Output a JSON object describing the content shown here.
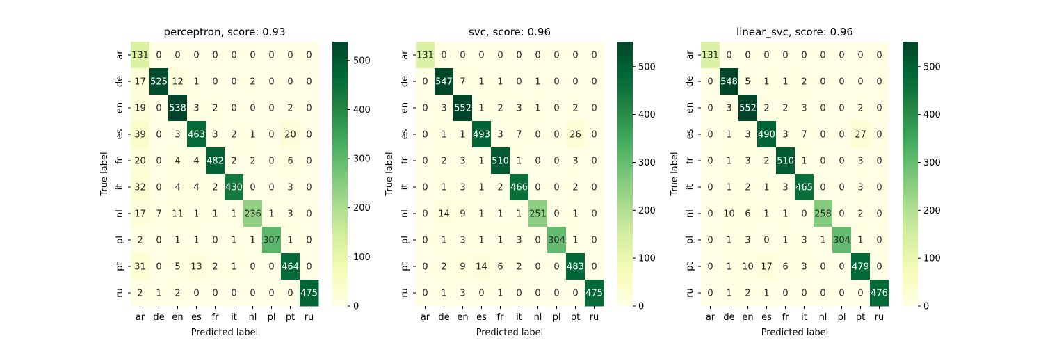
{
  "chart_data": [
    {
      "type": "heatmap",
      "title": "perceptron, score: 0.93",
      "xlabel": "Predicted label",
      "ylabel": "True label",
      "x_categories": [
        "ar",
        "de",
        "en",
        "es",
        "fr",
        "it",
        "nl",
        "pl",
        "pt",
        "ru"
      ],
      "y_categories": [
        "ar",
        "de",
        "en",
        "es",
        "fr",
        "it",
        "nl",
        "pl",
        "pt",
        "ru"
      ],
      "values": [
        [
          131,
          0,
          0,
          0,
          0,
          0,
          0,
          0,
          0,
          0
        ],
        [
          17,
          525,
          12,
          1,
          0,
          0,
          2,
          0,
          0,
          0
        ],
        [
          19,
          0,
          538,
          3,
          2,
          0,
          0,
          0,
          2,
          0
        ],
        [
          39,
          0,
          3,
          463,
          3,
          2,
          1,
          0,
          20,
          0
        ],
        [
          20,
          0,
          4,
          4,
          482,
          2,
          2,
          0,
          6,
          0
        ],
        [
          32,
          0,
          4,
          4,
          2,
          430,
          0,
          0,
          3,
          0
        ],
        [
          17,
          7,
          11,
          1,
          1,
          1,
          236,
          1,
          3,
          0
        ],
        [
          2,
          0,
          1,
          1,
          0,
          1,
          1,
          307,
          1,
          0
        ],
        [
          31,
          0,
          5,
          13,
          2,
          1,
          0,
          0,
          464,
          0
        ],
        [
          2,
          1,
          2,
          0,
          0,
          0,
          0,
          0,
          0,
          475
        ]
      ],
      "colorbar": {
        "min": 0,
        "max": 538,
        "ticks": [
          0,
          100,
          200,
          300,
          400,
          500
        ]
      }
    },
    {
      "type": "heatmap",
      "title": "svc, score: 0.96",
      "xlabel": "Predicted label",
      "ylabel": "True label",
      "x_categories": [
        "ar",
        "de",
        "en",
        "es",
        "fr",
        "it",
        "nl",
        "pl",
        "pt",
        "ru"
      ],
      "y_categories": [
        "ar",
        "de",
        "en",
        "es",
        "fr",
        "it",
        "nl",
        "pl",
        "pt",
        "ru"
      ],
      "values": [
        [
          131,
          0,
          0,
          0,
          0,
          0,
          0,
          0,
          0,
          0
        ],
        [
          0,
          547,
          7,
          1,
          1,
          0,
          1,
          0,
          0,
          0
        ],
        [
          0,
          3,
          552,
          1,
          2,
          3,
          1,
          0,
          2,
          0
        ],
        [
          0,
          1,
          1,
          493,
          3,
          7,
          0,
          0,
          26,
          0
        ],
        [
          0,
          2,
          3,
          1,
          510,
          1,
          0,
          0,
          3,
          0
        ],
        [
          0,
          1,
          3,
          1,
          2,
          466,
          0,
          0,
          2,
          0
        ],
        [
          0,
          14,
          9,
          1,
          1,
          1,
          251,
          0,
          1,
          0
        ],
        [
          0,
          1,
          3,
          1,
          1,
          3,
          0,
          304,
          1,
          0
        ],
        [
          0,
          2,
          9,
          14,
          6,
          2,
          0,
          0,
          483,
          0
        ],
        [
          0,
          1,
          3,
          0,
          1,
          0,
          0,
          0,
          0,
          475
        ]
      ],
      "colorbar": {
        "min": 0,
        "max": 552,
        "ticks": [
          0,
          100,
          200,
          300,
          400,
          500
        ]
      }
    },
    {
      "type": "heatmap",
      "title": "linear_svc, score: 0.96",
      "xlabel": "Predicted label",
      "ylabel": "True label",
      "x_categories": [
        "ar",
        "de",
        "en",
        "es",
        "fr",
        "it",
        "nl",
        "pl",
        "pt",
        "ru"
      ],
      "y_categories": [
        "ar",
        "de",
        "en",
        "es",
        "fr",
        "it",
        "nl",
        "pl",
        "pt",
        "ru"
      ],
      "values": [
        [
          131,
          0,
          0,
          0,
          0,
          0,
          0,
          0,
          0,
          0
        ],
        [
          0,
          548,
          5,
          1,
          1,
          2,
          0,
          0,
          0,
          0
        ],
        [
          0,
          3,
          552,
          2,
          2,
          3,
          0,
          0,
          2,
          0
        ],
        [
          0,
          1,
          3,
          490,
          3,
          7,
          0,
          0,
          27,
          0
        ],
        [
          0,
          1,
          3,
          2,
          510,
          1,
          0,
          0,
          3,
          0
        ],
        [
          0,
          1,
          2,
          1,
          3,
          465,
          0,
          0,
          3,
          0
        ],
        [
          0,
          10,
          6,
          1,
          1,
          0,
          258,
          0,
          2,
          0
        ],
        [
          0,
          1,
          3,
          0,
          1,
          3,
          1,
          304,
          1,
          0
        ],
        [
          0,
          1,
          10,
          17,
          6,
          3,
          0,
          0,
          479,
          0
        ],
        [
          0,
          1,
          2,
          1,
          0,
          0,
          0,
          0,
          0,
          476
        ]
      ],
      "colorbar": {
        "min": 0,
        "max": 552,
        "ticks": [
          0,
          100,
          200,
          300,
          400,
          500
        ]
      }
    }
  ]
}
